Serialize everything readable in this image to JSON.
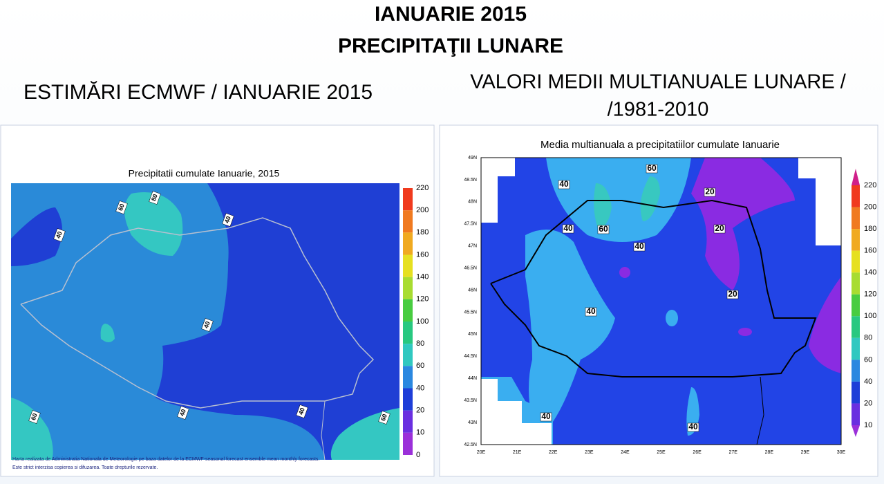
{
  "header": {
    "title_lines": [
      "IANUARIE 2015",
      "PRECIPITAŢII LUNARE"
    ],
    "left_heading": "ESTIMĂRI ECMWF / IANUARIE 2015",
    "right_heading_lines": [
      "VALORI MEDII MULTIANUALE LUNARE /",
      "/1981-2010"
    ]
  },
  "left_map": {
    "title": "Precipitatii cumulate Ianuarie, 2015",
    "colorbar_labels": [
      "220",
      "200",
      "180",
      "160",
      "140",
      "120",
      "100",
      "80",
      "60",
      "40",
      "20",
      "10",
      "0"
    ],
    "contour_labels": [
      "60",
      "80",
      "40",
      "40",
      "40",
      "40",
      "40",
      "60",
      "60"
    ],
    "footnote": [
      "Harta realizata de Administratia Nationala de Meteorologie pe baza datelor de la ECMWF-seasonal forecast ensemble mean monthly forecasts.",
      "Este strict interzisa copierea si difuzarea. Toate drepturile rezervate."
    ]
  },
  "right_map": {
    "title": "Media multianuala a precipitatiilor cumulate Ianuarie",
    "colorbar_labels": [
      "220",
      "200",
      "180",
      "160",
      "140",
      "120",
      "100",
      "80",
      "60",
      "40",
      "20",
      "10"
    ],
    "lat_labels": [
      "49N",
      "48.5N",
      "48N",
      "47.5N",
      "47N",
      "46.5N",
      "46N",
      "45.5N",
      "45N",
      "44.5N",
      "44N",
      "43.5N",
      "43N",
      "42.5N"
    ],
    "lon_labels": [
      "20E",
      "21E",
      "22E",
      "23E",
      "24E",
      "25E",
      "26E",
      "27E",
      "28E",
      "29E",
      "30E"
    ],
    "contour_labels": [
      "40",
      "60",
      "20",
      "40",
      "60",
      "40",
      "20",
      "40",
      "20",
      "40",
      "40"
    ]
  }
}
